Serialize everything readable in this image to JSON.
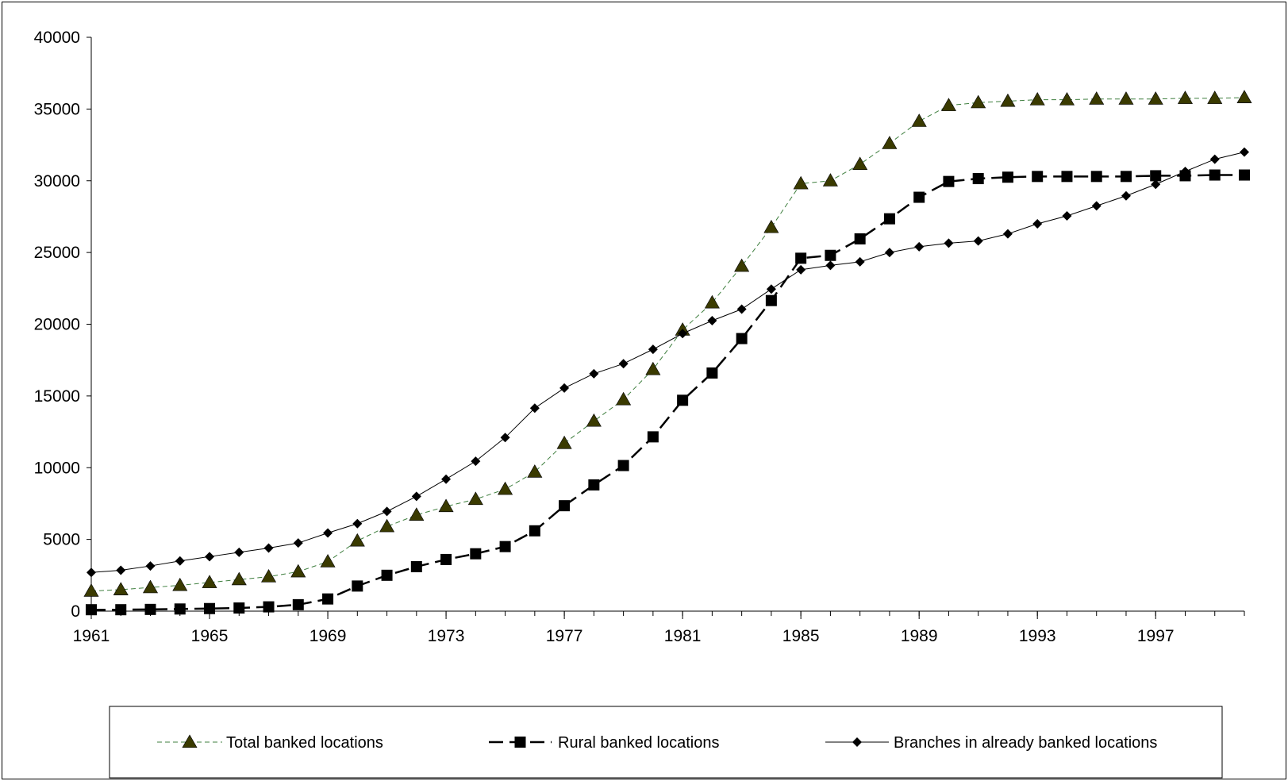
{
  "chart_data": {
    "type": "line",
    "title": "",
    "xlabel": "",
    "ylabel": "",
    "ylim": [
      0,
      40000
    ],
    "yticks": [
      "0",
      "5000",
      "10000",
      "15000",
      "20000",
      "25000",
      "30000",
      "35000",
      "40000"
    ],
    "xticks": [
      "1961",
      "1965",
      "1969",
      "1973",
      "1977",
      "1981",
      "1985",
      "1989",
      "1993",
      "1997"
    ],
    "x": [
      1961,
      1962,
      1963,
      1964,
      1965,
      1966,
      1967,
      1968,
      1969,
      1970,
      1971,
      1972,
      1973,
      1974,
      1975,
      1976,
      1977,
      1978,
      1979,
      1980,
      1981,
      1982,
      1983,
      1984,
      1985,
      1986,
      1987,
      1988,
      1989,
      1990,
      1991,
      1992,
      1993,
      1994,
      1995,
      1996,
      1997,
      1998,
      1999,
      2000
    ],
    "grid": false,
    "legend_position": "bottom",
    "series": [
      {
        "name": "Total banked locations",
        "color": "#3a3a00",
        "line_color": "#3f7f3f",
        "marker": "triangle",
        "dash": "dashed-thin",
        "values": [
          1400,
          1500,
          1650,
          1800,
          2000,
          2200,
          2400,
          2750,
          3450,
          4900,
          5900,
          6700,
          7300,
          7800,
          8500,
          9700,
          11700,
          13250,
          14750,
          16850,
          19600,
          21500,
          24050,
          26750,
          29800,
          30000,
          31150,
          32600,
          34150,
          35250,
          35450,
          35550,
          35650,
          35650,
          35700,
          35700,
          35700,
          35750,
          35750,
          35800
        ]
      },
      {
        "name": "Rural banked locations",
        "color": "#000000",
        "line_color": "#000000",
        "marker": "square",
        "dash": "dashed-thick",
        "values": [
          100,
          100,
          120,
          150,
          180,
          220,
          300,
          450,
          850,
          1750,
          2500,
          3100,
          3600,
          4000,
          4500,
          5600,
          7350,
          8800,
          10150,
          12150,
          14700,
          16600,
          19000,
          21650,
          24600,
          24800,
          25950,
          27350,
          28850,
          29950,
          30150,
          30250,
          30300,
          30300,
          30300,
          30300,
          30350,
          30350,
          30400,
          30400
        ]
      },
      {
        "name": "Branches in already banked locations",
        "color": "#000000",
        "line_color": "#000000",
        "marker": "diamond",
        "dash": "solid-thin",
        "values": [
          2700,
          2850,
          3150,
          3500,
          3800,
          4100,
          4400,
          4750,
          5450,
          6100,
          6950,
          8000,
          9200,
          10450,
          12100,
          14150,
          15550,
          16550,
          17250,
          18250,
          19350,
          20250,
          21050,
          22450,
          23800,
          24100,
          24350,
          25000,
          25400,
          25650,
          25800,
          26300,
          27000,
          27550,
          28250,
          28950,
          29750,
          30650,
          31500,
          32000
        ]
      }
    ]
  }
}
